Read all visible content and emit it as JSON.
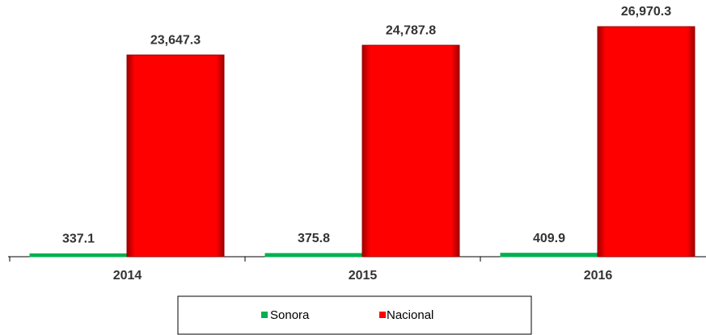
{
  "chart_data": {
    "type": "bar",
    "categories": [
      "2014",
      "2015",
      "2016"
    ],
    "series": [
      {
        "name": "Sonora",
        "color": "#00b050",
        "values": [
          337.1,
          375.8,
          409.9
        ]
      },
      {
        "name": "Nacional",
        "color": "#ff0000",
        "values": [
          23647.3,
          24787.8,
          26970.3
        ],
        "value_labels": [
          "23,647.3",
          "24,787.8",
          "26,970.3"
        ]
      }
    ],
    "legend": "bottom"
  }
}
